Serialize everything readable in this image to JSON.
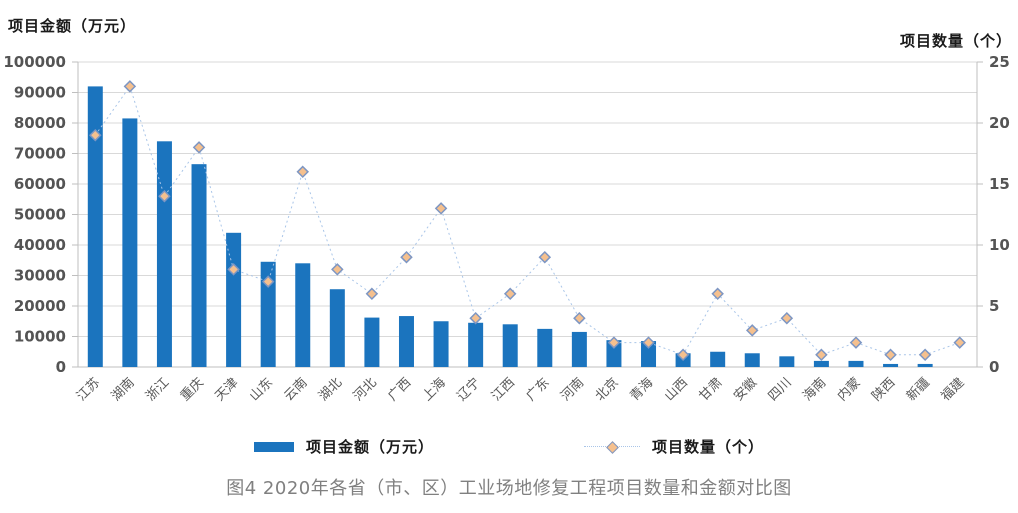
{
  "figure": {
    "left_axis_title": "项目金额（万元）",
    "right_axis_title": "项目数量（个）",
    "caption": "图4  2020年各省（市、区）工业场地修复工程项目数量和金额对比图",
    "legend": [
      {
        "swatch": "bar-swatch",
        "label": "项目金额（万元）"
      },
      {
        "swatch": "line-marker-swatch",
        "label": "项目数量（个）"
      }
    ]
  },
  "chart_data": {
    "type": "bar+line",
    "title": "图4  2020年各省（市、区）工业场地修复工程项目数量和金额对比图",
    "categories": [
      "江苏",
      "湖南",
      "浙江",
      "重庆",
      "天津",
      "山东",
      "云南",
      "湖北",
      "河北",
      "广西",
      "上海",
      "辽宁",
      "江西",
      "广东",
      "河南",
      "北京",
      "青海",
      "山西",
      "甘肃",
      "安徽",
      "四川",
      "海南",
      "内蒙",
      "陕西",
      "新疆",
      "福建"
    ],
    "series": [
      {
        "name": "项目金额（万元）",
        "type": "bar",
        "axis": "left",
        "values": [
          92000,
          81500,
          74000,
          66500,
          44000,
          34500,
          34000,
          25500,
          16200,
          16700,
          15000,
          14500,
          14000,
          12500,
          11500,
          8800,
          8500,
          4500,
          5000,
          4500,
          3500,
          2000,
          2000,
          1000,
          1000,
          0
        ]
      },
      {
        "name": "项目数量（个）",
        "type": "line",
        "axis": "right",
        "values": [
          19,
          23,
          14,
          18,
          8,
          7,
          16,
          8,
          6,
          9,
          13,
          4,
          6,
          9,
          4,
          2,
          2,
          1,
          6,
          3,
          4,
          1,
          2,
          1,
          1,
          2
        ]
      }
    ],
    "left_axis": {
      "label": "项目金额（万元）",
      "min": 0,
      "max": 100000,
      "step": 10000,
      "tick_labels": [
        "0",
        "10000",
        "20000",
        "30000",
        "40000",
        "50000",
        "60000",
        "70000",
        "80000",
        "90000",
        "100000"
      ]
    },
    "right_axis": {
      "label": "项目数量（个）",
      "min": 0,
      "max": 25,
      "step": 5,
      "tick_labels": [
        "0",
        "5",
        "10",
        "15",
        "20",
        "25"
      ]
    },
    "grid": true,
    "legend_position": "bottom"
  },
  "colors": {
    "bar": "#1b74be",
    "line": "#a9c5e8",
    "marker_fill": "#f5c08e",
    "marker_stroke": "#7d96c3",
    "gridline": "#d9d9d9",
    "axis_line": "#bfbfbf",
    "tick_label": "#545454",
    "category_label": "#595959",
    "title_text": "#1a1a1a",
    "caption_text": "#808080",
    "background": "#ffffff"
  }
}
